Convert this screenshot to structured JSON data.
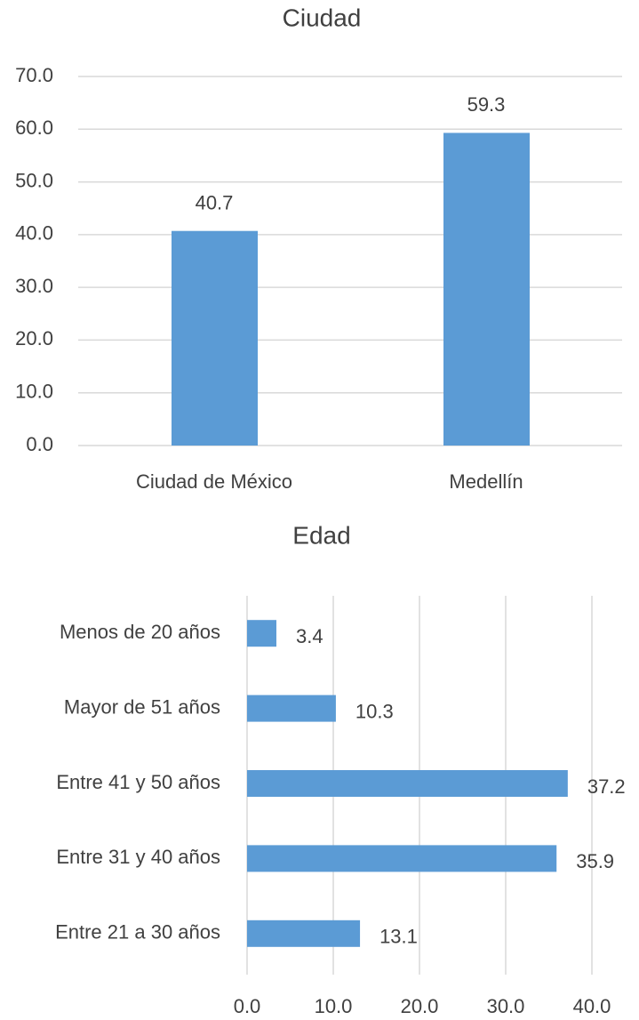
{
  "chart_data": [
    {
      "type": "bar",
      "title": "Ciudad",
      "categories": [
        "Ciudad de México",
        "Medellín"
      ],
      "values": [
        40.7,
        59.3
      ],
      "color": "#5b9bd5",
      "ylim": [
        0,
        70
      ],
      "yticks": [
        {
          "value": 0,
          "label": "0.0"
        },
        {
          "value": 10,
          "label": "10.0"
        },
        {
          "value": 20,
          "label": "20.0"
        },
        {
          "value": 30,
          "label": "30.0"
        },
        {
          "value": 40,
          "label": "40.0"
        },
        {
          "value": 50,
          "label": "50.0"
        },
        {
          "value": 60,
          "label": "60.0"
        },
        {
          "value": 70,
          "label": "70.0"
        }
      ],
      "grid": true
    },
    {
      "type": "barh",
      "title": "Edad",
      "categories": [
        "Menos de 20 años",
        "Mayor de 51 años",
        "Entre 41 y 50 años",
        "Entre 31 y 40 años",
        "Entre 21 a 30 años"
      ],
      "values": [
        3.4,
        10.3,
        37.2,
        35.9,
        13.1
      ],
      "color": "#5b9bd5",
      "xlim": [
        0,
        40
      ],
      "xticks": [
        {
          "value": 0,
          "label": "0.0"
        },
        {
          "value": 10,
          "label": "10.0"
        },
        {
          "value": 20,
          "label": "20.0"
        },
        {
          "value": 30,
          "label": "30.0"
        },
        {
          "value": 40,
          "label": "40.0"
        }
      ],
      "grid": true
    }
  ]
}
